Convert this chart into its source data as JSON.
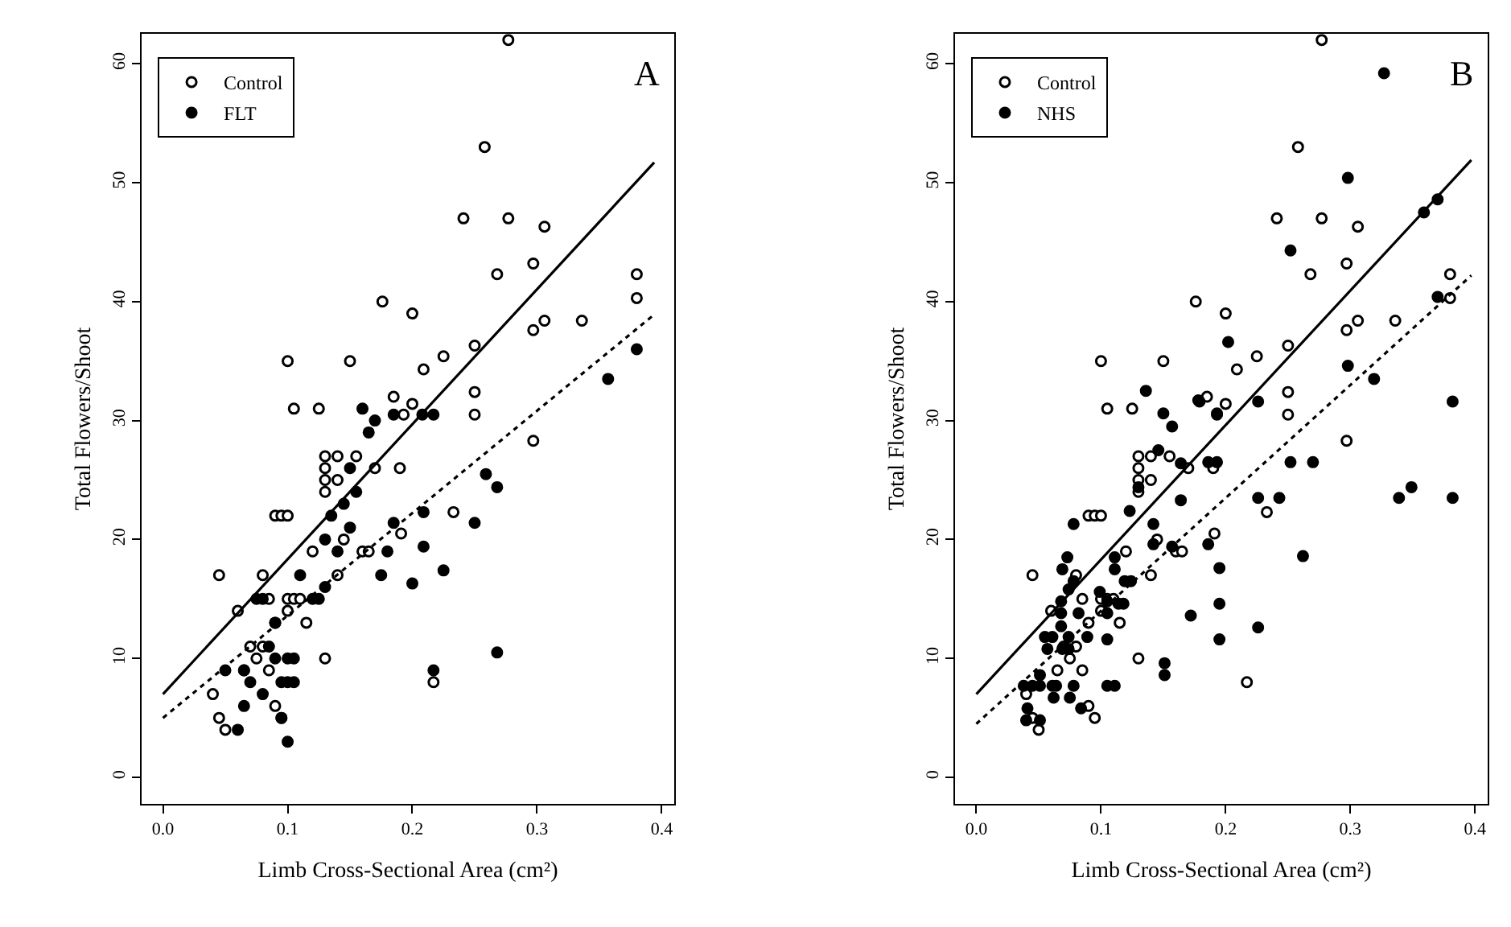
{
  "chart_data": [
    {
      "type": "scatter",
      "title": "A",
      "xlabel": "Limb Cross-Sectional Area (cm²)",
      "ylabel": "Total Flowers/Shoot",
      "xlim": [
        -0.017,
        0.41
      ],
      "ylim": [
        -2.2,
        62.5
      ],
      "xticks": [
        {
          "value": 0,
          "label": "0.0"
        },
        {
          "value": 0.1,
          "label": "0.1"
        },
        {
          "value": 0.2,
          "label": "0.2"
        },
        {
          "value": 0.3,
          "label": "0.3"
        },
        {
          "value": 0.4,
          "label": "0.4"
        }
      ],
      "yticks": [
        0,
        10,
        20,
        30,
        40,
        50,
        60
      ],
      "legend": "top left",
      "series": [
        {
          "name": "Control",
          "color": "#ffffff",
          "marker": "circle",
          "line_style": "solid",
          "x": [
            0.04,
            0.045,
            0.05,
            0.045,
            0.06,
            0.065,
            0.07,
            0.075,
            0.08,
            0.08,
            0.085,
            0.09,
            0.095,
            0.085,
            0.09,
            0.09,
            0.095,
            0.1,
            0.1,
            0.105,
            0.1,
            0.1,
            0.105,
            0.11,
            0.115,
            0.12,
            0.125,
            0.13,
            0.13,
            0.13,
            0.13,
            0.13,
            0.14,
            0.14,
            0.14,
            0.145,
            0.15,
            0.155,
            0.16,
            0.165,
            0.17,
            0.176,
            0.185,
            0.19,
            0.191,
            0.193,
            0.2,
            0.2,
            0.209,
            0.217,
            0.225,
            0.233,
            0.241,
            0.25,
            0.25,
            0.25,
            0.258,
            0.268,
            0.277,
            0.277,
            0.297,
            0.297,
            0.297,
            0.306,
            0.306,
            0.336,
            0.38,
            0.38
          ],
          "values": [
            7,
            5,
            4,
            17,
            14,
            9,
            11,
            10,
            11,
            17,
            15,
            22,
            22,
            9,
            13,
            6,
            5,
            15,
            14,
            15,
            22,
            35,
            31,
            15,
            13,
            19,
            31,
            10,
            25,
            26,
            27,
            24,
            27,
            25,
            17,
            20,
            35,
            27,
            19,
            19,
            26,
            40,
            32,
            26,
            20.5,
            30.5,
            31.4,
            39,
            34.3,
            8,
            35.4,
            22.3,
            47,
            30.5,
            32.4,
            36.3,
            53,
            42.3,
            47,
            62,
            28.3,
            37.6,
            43.2,
            38.4,
            46.3,
            38.4,
            42.3,
            40.3
          ]
        },
        {
          "name": "FLT",
          "color": "#000000",
          "marker": "circle",
          "line_style": "dotted",
          "x": [
            0.05,
            0.06,
            0.065,
            0.065,
            0.07,
            0.075,
            0.08,
            0.08,
            0.085,
            0.09,
            0.09,
            0.095,
            0.095,
            0.1,
            0.1,
            0.1,
            0.105,
            0.105,
            0.11,
            0.12,
            0.125,
            0.13,
            0.13,
            0.135,
            0.14,
            0.145,
            0.15,
            0.15,
            0.155,
            0.16,
            0.165,
            0.17,
            0.175,
            0.18,
            0.185,
            0.185,
            0.2,
            0.208,
            0.209,
            0.209,
            0.217,
            0.217,
            0.225,
            0.25,
            0.259,
            0.268,
            0.268,
            0.357,
            0.38
          ],
          "values": [
            9,
            4,
            9,
            6,
            8,
            15,
            7,
            15,
            11,
            13,
            10,
            8,
            5,
            3,
            10,
            8,
            10,
            8,
            17,
            15,
            15,
            16,
            20,
            22,
            19,
            23,
            26,
            21,
            24,
            31,
            29,
            30,
            17,
            19,
            21.4,
            30.5,
            16.3,
            30.5,
            22.3,
            19.4,
            30.5,
            9,
            17.4,
            21.4,
            25.5,
            24.4,
            10.5,
            33.5,
            36
          ]
        },
        {
          "type": "line",
          "color": "#000000",
          "line_style": "solid",
          "marker": "none",
          "x": [
            0,
            0.394
          ],
          "values": [
            7,
            51.7
          ]
        },
        {
          "type": "line",
          "color": "#000000",
          "line_style": "dotted",
          "marker": "none",
          "x": [
            0,
            0.395
          ],
          "values": [
            5,
            39
          ]
        }
      ]
    },
    {
      "type": "scatter",
      "title": "B",
      "xlabel": "Limb Cross-Sectional Area (cm²)",
      "ylabel": "Total Flowers/Shoot",
      "xlim": [
        -0.017,
        0.41
      ],
      "ylim": [
        -2.2,
        62.5
      ],
      "xticks": [
        {
          "value": 0,
          "label": "0.0"
        },
        {
          "value": 0.1,
          "label": "0.1"
        },
        {
          "value": 0.2,
          "label": "0.2"
        },
        {
          "value": 0.3,
          "label": "0.3"
        },
        {
          "value": 0.4,
          "label": "0.4"
        }
      ],
      "yticks": [
        0,
        10,
        20,
        30,
        40,
        50,
        60
      ],
      "legend": "top left",
      "series": [
        {
          "name": "Control",
          "color": "#ffffff",
          "marker": "circle",
          "line_style": "solid",
          "x": [
            0.04,
            0.045,
            0.05,
            0.045,
            0.06,
            0.065,
            0.07,
            0.075,
            0.08,
            0.08,
            0.085,
            0.09,
            0.095,
            0.085,
            0.09,
            0.09,
            0.095,
            0.1,
            0.1,
            0.105,
            0.1,
            0.1,
            0.105,
            0.11,
            0.115,
            0.12,
            0.125,
            0.13,
            0.13,
            0.13,
            0.13,
            0.13,
            0.14,
            0.14,
            0.14,
            0.145,
            0.15,
            0.155,
            0.16,
            0.165,
            0.17,
            0.176,
            0.185,
            0.19,
            0.191,
            0.193,
            0.2,
            0.2,
            0.209,
            0.217,
            0.225,
            0.233,
            0.241,
            0.25,
            0.25,
            0.25,
            0.258,
            0.268,
            0.277,
            0.277,
            0.297,
            0.297,
            0.297,
            0.306,
            0.306,
            0.336,
            0.38,
            0.38
          ],
          "values": [
            7,
            5,
            4,
            17,
            14,
            9,
            11,
            10,
            11,
            17,
            15,
            22,
            22,
            9,
            13,
            6,
            5,
            15,
            14,
            15,
            22,
            35,
            31,
            15,
            13,
            19,
            31,
            10,
            25,
            26,
            27,
            24,
            27,
            25,
            17,
            20,
            35,
            27,
            19,
            19,
            26,
            40,
            32,
            26,
            20.5,
            30.5,
            31.4,
            39,
            34.3,
            8,
            35.4,
            22.3,
            47,
            30.5,
            32.4,
            36.3,
            53,
            42.3,
            47,
            62,
            28.3,
            37.6,
            43.2,
            38.4,
            46.3,
            38.4,
            42.3,
            40.3
          ]
        },
        {
          "name": "NHS",
          "color": "#000000",
          "marker": "circle",
          "line_style": "dotted",
          "x": [
            0.136,
            0.178,
            0.15,
            0.157,
            0.164,
            0.146,
            0.13,
            0.164,
            0.123,
            0.078,
            0.142,
            0.142,
            0.157,
            0.186,
            0.073,
            0.111,
            0.069,
            0.111,
            0.119,
            0.124,
            0.078,
            0.074,
            0.099,
            0.105,
            0.114,
            0.118,
            0.068,
            0.172,
            0.068,
            0.082,
            0.105,
            0.068,
            0.105,
            0.055,
            0.061,
            0.074,
            0.089,
            0.057,
            0.069,
            0.074,
            0.151,
            0.151,
            0.051,
            0.038,
            0.045,
            0.051,
            0.061,
            0.064,
            0.078,
            0.105,
            0.111,
            0.062,
            0.075,
            0.084,
            0.041,
            0.04,
            0.051,
            0.327,
            0.298,
            0.359,
            0.37,
            0.252,
            0.37,
            0.202,
            0.298,
            0.319,
            0.179,
            0.226,
            0.193,
            0.382,
            0.186,
            0.193,
            0.252,
            0.27,
            0.226,
            0.243,
            0.339,
            0.349,
            0.382,
            0.195,
            0.195,
            0.195,
            0.262,
            0.226
          ],
          "values": [
            32.5,
            31.7,
            30.6,
            29.5,
            26.4,
            27.5,
            24.4,
            23.3,
            22.4,
            21.3,
            21.3,
            19.6,
            19.4,
            19.6,
            18.5,
            18.5,
            17.5,
            17.5,
            16.5,
            16.5,
            16.5,
            15.8,
            15.6,
            14.8,
            14.6,
            14.6,
            14.8,
            13.6,
            13.8,
            13.8,
            13.8,
            12.7,
            11.6,
            11.8,
            11.8,
            11.8,
            11.8,
            10.8,
            10.8,
            10.8,
            9.6,
            8.6,
            8.6,
            7.7,
            7.7,
            7.7,
            7.7,
            7.7,
            7.7,
            7.7,
            7.7,
            6.7,
            6.7,
            5.8,
            5.8,
            4.8,
            4.8,
            59.2,
            50.4,
            47.5,
            48.6,
            44.3,
            40.4,
            36.6,
            34.6,
            33.5,
            31.6,
            31.6,
            30.6,
            31.6,
            26.5,
            26.5,
            26.5,
            26.5,
            23.5,
            23.5,
            23.5,
            24.4,
            23.5,
            17.6,
            14.6,
            11.6,
            18.6,
            12.6
          ]
        },
        {
          "type": "line",
          "color": "#000000",
          "line_style": "solid",
          "marker": "none",
          "x": [
            0,
            0.397
          ],
          "values": [
            7,
            51.9
          ]
        },
        {
          "type": "line",
          "color": "#000000",
          "line_style": "dotted",
          "marker": "none",
          "x": [
            0,
            0.397
          ],
          "values": [
            4.5,
            42.2
          ]
        }
      ]
    }
  ]
}
